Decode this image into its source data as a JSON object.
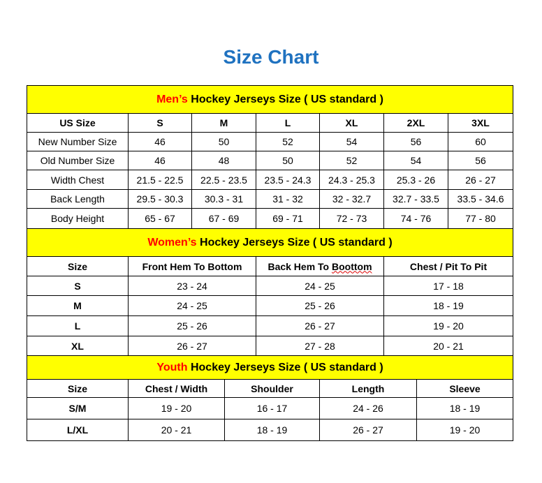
{
  "title": "Size Chart",
  "colors": {
    "title": "#1f72c0",
    "band": "#ffff00",
    "accent": "#ff0000"
  },
  "mens": {
    "heading_accent": "Men’s",
    "heading_rest": " Hockey Jerseys Size ( US standard )",
    "headers": [
      "US Size",
      "S",
      "M",
      "L",
      "XL",
      "2XL",
      "3XL"
    ],
    "rows": [
      [
        "New Number Size",
        "46",
        "50",
        "52",
        "54",
        "56",
        "60"
      ],
      [
        "Old Number Size",
        "46",
        "48",
        "50",
        "52",
        "54",
        "56"
      ],
      [
        "Width Chest",
        "21.5 - 22.5",
        "22.5 - 23.5",
        "23.5 - 24.3",
        "24.3 - 25.3",
        "25.3 - 26",
        "26 - 27"
      ],
      [
        "Back Length",
        "29.5 - 30.3",
        "30.3 - 31",
        "31 - 32",
        "32 - 32.7",
        "32.7 - 33.5",
        "33.5 - 34.6"
      ],
      [
        "Body Height",
        "65 - 67",
        "67 - 69",
        "69 - 71",
        "72 - 73",
        "74 - 76",
        "77 - 80"
      ]
    ]
  },
  "womens": {
    "heading_accent": "Women’s",
    "heading_rest": " Hockey Jerseys Size ( US standard )",
    "headers": [
      "Size",
      "Front Hem To Bottom",
      "Back Hem To Boottom",
      "Chest / Pit To Pit"
    ],
    "rows": [
      [
        "S",
        "23 - 24",
        "24 - 25",
        "17 - 18"
      ],
      [
        "M",
        "24 - 25",
        "25 - 26",
        "18 - 19"
      ],
      [
        "L",
        "25 - 26",
        "26 - 27",
        "19 - 20"
      ],
      [
        "XL",
        "26 - 27",
        "27 - 28",
        "20 - 21"
      ]
    ]
  },
  "youth": {
    "heading_accent": "Youth",
    "heading_rest": " Hockey Jerseys Size ( US standard )",
    "headers": [
      "Size",
      "Chest / Width",
      "Shoulder",
      "Length",
      "Sleeve"
    ],
    "rows": [
      [
        "S/M",
        "19 - 20",
        "16 - 17",
        "24 - 26",
        "18 - 19"
      ],
      [
        "L/XL",
        "20 - 21",
        "18 - 19",
        "26 - 27",
        "19 - 20"
      ]
    ]
  }
}
